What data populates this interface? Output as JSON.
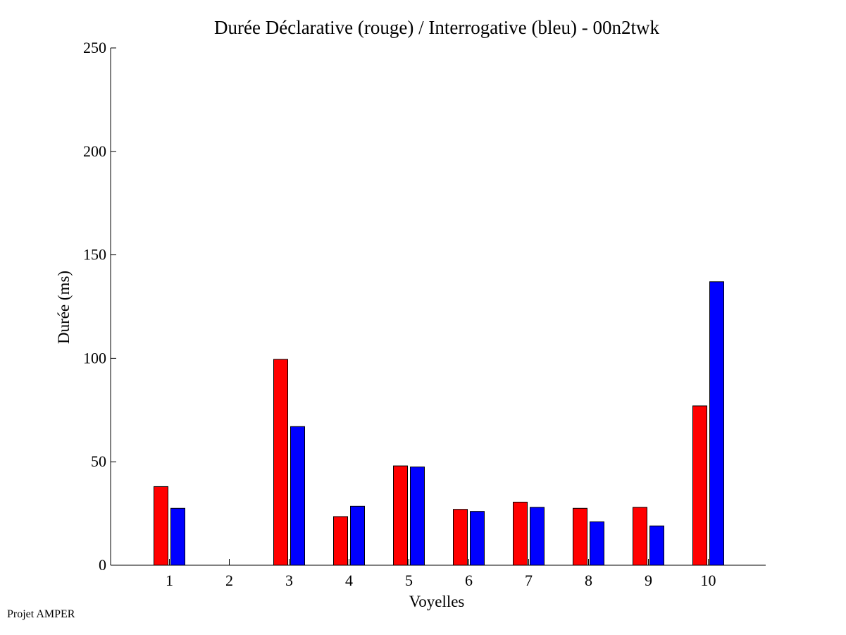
{
  "footer": {
    "credit": "Projet AMPER"
  },
  "colors": {
    "declarative": "#ff0000",
    "interrogative": "#0000ff",
    "axis": "#000000"
  },
  "chart_data": {
    "type": "bar",
    "title": "Durée Déclarative (rouge) / Interrogative (bleu) - 00n2twk",
    "xlabel": "Voyelles",
    "ylabel": "Durée (ms)",
    "categories": [
      "1",
      "2",
      "3",
      "4",
      "5",
      "6",
      "7",
      "8",
      "9",
      "10"
    ],
    "ylim": [
      0,
      250
    ],
    "yticks": [
      0,
      50,
      100,
      150,
      200,
      250
    ],
    "grid": false,
    "series": [
      {
        "key": "declarative",
        "color": "#ff0000",
        "values": [
          38,
          null,
          99.5,
          23.5,
          48,
          27,
          30.5,
          27.5,
          28,
          77
        ]
      },
      {
        "key": "interrogative",
        "color": "#0000ff",
        "values": [
          27.5,
          null,
          67,
          28.5,
          47.5,
          26,
          28,
          21,
          19,
          137
        ]
      }
    ]
  }
}
